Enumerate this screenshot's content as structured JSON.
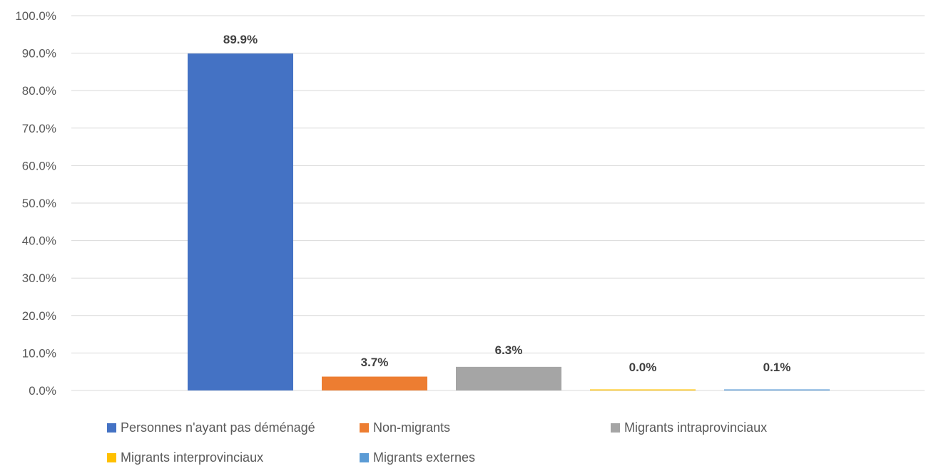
{
  "chart_data": {
    "type": "bar",
    "title": "",
    "xlabel": "",
    "ylabel": "",
    "ylim": [
      0,
      100
    ],
    "yticks": [
      "0.0%",
      "10.0%",
      "20.0%",
      "30.0%",
      "40.0%",
      "50.0%",
      "60.0%",
      "70.0%",
      "80.0%",
      "90.0%",
      "100.0%"
    ],
    "grid": true,
    "legend_position": "bottom",
    "series": [
      {
        "name": "Personnes n'ayant pas déménagé",
        "value": 89.9,
        "label": "89.9%",
        "color": "#4472C4"
      },
      {
        "name": "Non-migrants",
        "value": 3.7,
        "label": "3.7%",
        "color": "#ED7D31"
      },
      {
        "name": "Migrants intraprovinciaux",
        "value": 6.3,
        "label": "6.3%",
        "color": "#A5A5A5"
      },
      {
        "name": "Migrants interprovinciaux",
        "value": 0.0,
        "label": "0.0%",
        "color": "#FFC000"
      },
      {
        "name": "Migrants externes",
        "value": 0.1,
        "label": "0.1%",
        "color": "#5B9BD5"
      }
    ]
  }
}
